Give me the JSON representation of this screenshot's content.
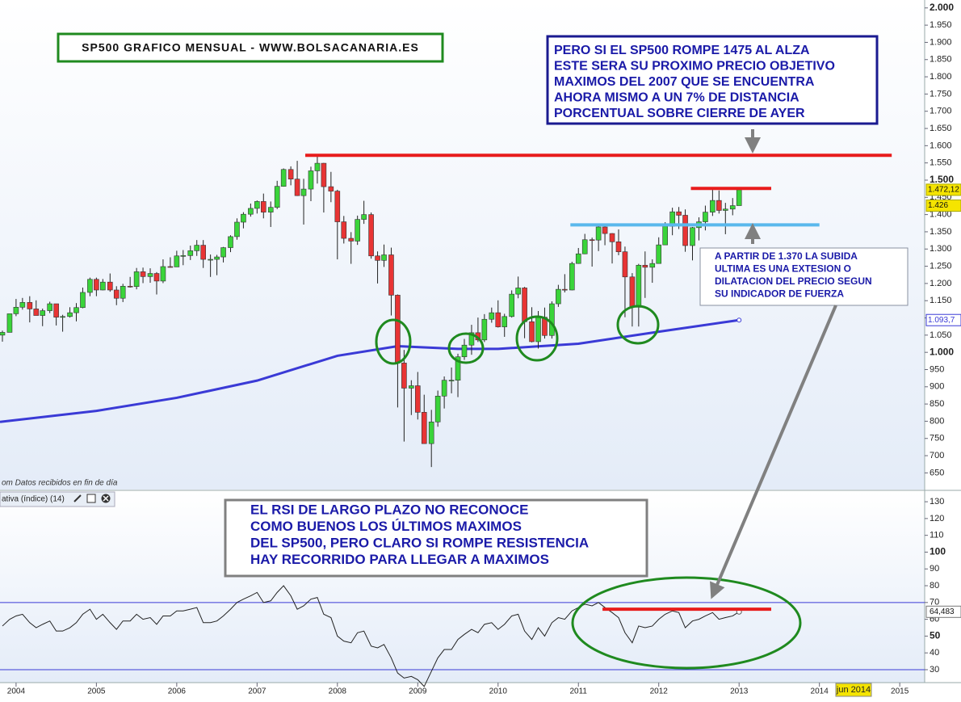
{
  "chart_data": {
    "type": "candlestick",
    "title": "SP500 GRAFICO MENSUAL - WWW.BOLSACANARIA.ES",
    "footnote": "om  Datos recibidos en fin de día",
    "x": [
      2003.83,
      2003.92,
      2004,
      2004.08,
      2004.17,
      2004.25,
      2004.33,
      2004.42,
      2004.5,
      2004.58,
      2004.67,
      2004.75,
      2004.83,
      2004.92,
      2005,
      2005.08,
      2005.17,
      2005.25,
      2005.33,
      2005.42,
      2005.5,
      2005.58,
      2005.67,
      2005.75,
      2005.83,
      2005.92,
      2006,
      2006.08,
      2006.17,
      2006.25,
      2006.33,
      2006.42,
      2006.5,
      2006.58,
      2006.67,
      2006.75,
      2006.83,
      2006.92,
      2007,
      2007.08,
      2007.17,
      2007.25,
      2007.33,
      2007.42,
      2007.5,
      2007.58,
      2007.67,
      2007.75,
      2007.83,
      2007.92,
      2008,
      2008.08,
      2008.17,
      2008.25,
      2008.33,
      2008.42,
      2008.5,
      2008.58,
      2008.67,
      2008.75,
      2008.83,
      2008.92,
      2009,
      2009.08,
      2009.17,
      2009.25,
      2009.33,
      2009.42,
      2009.5,
      2009.58,
      2009.67,
      2009.75,
      2009.83,
      2009.92,
      2010,
      2010.08,
      2010.17,
      2010.25,
      2010.33,
      2010.42,
      2010.5,
      2010.58,
      2010.67,
      2010.75,
      2010.83,
      2010.92,
      2011,
      2011.08,
      2011.17,
      2011.25,
      2011.33,
      2011.42,
      2011.5,
      2011.58,
      2011.67,
      2011.75,
      2011.83,
      2011.92,
      2012,
      2012.08,
      2012.17,
      2012.25,
      2012.33,
      2012.42,
      2012.5,
      2012.58,
      2012.67,
      2012.75,
      2012.83,
      2012.92,
      2013
    ],
    "open": [
      1050,
      1058,
      1112,
      1131,
      1145,
      1126,
      1107,
      1121,
      1141,
      1102,
      1104,
      1115,
      1130,
      1174,
      1212,
      1181,
      1204,
      1181,
      1157,
      1192,
      1191,
      1234,
      1220,
      1229,
      1207,
      1249,
      1248,
      1280,
      1281,
      1295,
      1311,
      1270,
      1270,
      1277,
      1304,
      1336,
      1378,
      1401,
      1418,
      1438,
      1407,
      1421,
      1482,
      1531,
      1503,
      1455,
      1474,
      1527,
      1549,
      1481,
      1468,
      1379,
      1331,
      1323,
      1386,
      1400,
      1280,
      1267,
      1283,
      1166,
      969,
      896,
      903,
      826,
      735,
      798,
      873,
      919,
      919,
      987,
      1021,
      1057,
      1036,
      1096,
      1115,
      1074,
      1104,
      1169,
      1187,
      1089,
      1031,
      1102,
      1049,
      1141,
      1183,
      1181,
      1258,
      1286,
      1327,
      1326,
      1364,
      1345,
      1321,
      1292,
      1219,
      1131,
      1253,
      1247,
      1258,
      1312,
      1366,
      1408,
      1398,
      1310,
      1362,
      1379,
      1407,
      1441,
      1412,
      1416,
      1426
    ],
    "high": [
      1063,
      1112,
      1155,
      1158,
      1163,
      1151,
      1127,
      1147,
      1141,
      1109,
      1131,
      1143,
      1188,
      1217,
      1217,
      1213,
      1229,
      1192,
      1199,
      1219,
      1245,
      1246,
      1244,
      1233,
      1270,
      1276,
      1295,
      1297,
      1310,
      1326,
      1326,
      1284,
      1283,
      1306,
      1340,
      1389,
      1407,
      1432,
      1441,
      1461,
      1438,
      1498,
      1534,
      1540,
      1556,
      1504,
      1539,
      1576,
      1550,
      1524,
      1472,
      1396,
      1349,
      1397,
      1440,
      1406,
      1293,
      1313,
      1304,
      1168,
      1007,
      919,
      943,
      877,
      833,
      889,
      930,
      956,
      996,
      1039,
      1080,
      1101,
      1111,
      1130,
      1151,
      1112,
      1180,
      1220,
      1190,
      1131,
      1120,
      1130,
      1148,
      1196,
      1227,
      1263,
      1303,
      1344,
      1333,
      1370,
      1371,
      1346,
      1357,
      1307,
      1230,
      1257,
      1293,
      1270,
      1334,
      1378,
      1420,
      1422,
      1415,
      1364,
      1392,
      1426,
      1475,
      1470,
      1434,
      1448,
      1475
    ],
    "low": [
      1031,
      1058,
      1105,
      1124,
      1087,
      1107,
      1076,
      1114,
      1078,
      1060,
      1101,
      1090,
      1128,
      1163,
      1163,
      1180,
      1176,
      1137,
      1146,
      1188,
      1183,
      1201,
      1202,
      1168,
      1201,
      1246,
      1248,
      1253,
      1268,
      1280,
      1245,
      1219,
      1224,
      1261,
      1291,
      1327,
      1360,
      1394,
      1403,
      1389,
      1364,
      1416,
      1481,
      1485,
      1454,
      1371,
      1439,
      1490,
      1406,
      1436,
      1270,
      1316,
      1257,
      1312,
      1373,
      1272,
      1200,
      1248,
      1107,
      840,
      741,
      818,
      805,
      735,
      667,
      784,
      837,
      881,
      870,
      978,
      993,
      1030,
      1030,
      1086,
      1072,
      1045,
      1101,
      1157,
      1041,
      1029,
      1011,
      1040,
      1040,
      1132,
      1174,
      1180,
      1257,
      1285,
      1249,
      1294,
      1311,
      1258,
      1282,
      1102,
      1075,
      1075,
      1158,
      1202,
      1258,
      1312,
      1340,
      1358,
      1292,
      1267,
      1325,
      1354,
      1396,
      1403,
      1343,
      1398,
      1426
    ],
    "close": [
      1058,
      1112,
      1131,
      1145,
      1126,
      1107,
      1121,
      1141,
      1102,
      1104,
      1115,
      1130,
      1174,
      1212,
      1181,
      1204,
      1181,
      1157,
      1192,
      1191,
      1234,
      1220,
      1229,
      1207,
      1249,
      1248,
      1280,
      1281,
      1295,
      1311,
      1270,
      1270,
      1277,
      1304,
      1336,
      1378,
      1401,
      1418,
      1438,
      1407,
      1421,
      1482,
      1531,
      1503,
      1455,
      1474,
      1527,
      1549,
      1481,
      1468,
      1379,
      1331,
      1323,
      1386,
      1400,
      1280,
      1267,
      1283,
      1166,
      969,
      896,
      903,
      826,
      735,
      798,
      873,
      919,
      919,
      987,
      1021,
      1057,
      1036,
      1096,
      1115,
      1074,
      1104,
      1169,
      1187,
      1089,
      1031,
      1102,
      1049,
      1141,
      1183,
      1181,
      1258,
      1286,
      1327,
      1326,
      1364,
      1345,
      1321,
      1292,
      1219,
      1131,
      1253,
      1247,
      1258,
      1312,
      1366,
      1408,
      1398,
      1310,
      1362,
      1379,
      1407,
      1441,
      1412,
      1416,
      1426,
      1472.12
    ],
    "up_color": "#3ad43a",
    "down_color": "#e83434",
    "ma": {
      "color": "#3a3ad6",
      "x": [
        2003.8,
        2005,
        2006,
        2007,
        2008,
        2008.75,
        2009.5,
        2010,
        2011,
        2012,
        2013
      ],
      "values": [
        798,
        830,
        868,
        918,
        990,
        1018,
        1010,
        1010,
        1025,
        1060,
        1093.7
      ]
    },
    "levels": [
      {
        "value": 1572,
        "color": "#e81c1c",
        "x": [
          2007.6,
          2014.9
        ]
      },
      {
        "value": 1476,
        "color": "#e81c1c",
        "x": [
          2012.4,
          2013.4
        ]
      },
      {
        "value": 1370,
        "color": "#5ab8ec",
        "x": [
          2010.9,
          2014.0
        ]
      }
    ],
    "last_labels": [
      {
        "value": 1472.12,
        "label": "1.472,12"
      },
      {
        "value": 1426,
        "label": "1.426"
      },
      {
        "value": 1093.7,
        "label": "1.093,7"
      }
    ],
    "xlim": [
      2003.8,
      2015.31
    ],
    "ylim": [
      604,
      2023
    ],
    "xticks": [
      2004,
      2005,
      2006,
      2007,
      2008,
      2009,
      2010,
      2011,
      2012,
      2013,
      2014,
      2015
    ],
    "cursor_label": "jun 2014",
    "yticks": [
      650,
      700,
      750,
      800,
      850,
      900,
      950,
      {
        "value": 1000,
        "label": "1.000"
      },
      {
        "value": 1050,
        "label": "1.050"
      },
      {
        "value": 1100,
        "label": "1.100"
      },
      {
        "value": 1150,
        "label": "1.150"
      },
      {
        "value": 1200,
        "label": "1.200"
      },
      {
        "value": 1250,
        "label": "1.250"
      },
      {
        "value": 1300,
        "label": "1.300"
      },
      {
        "value": 1350,
        "label": "1.350"
      },
      {
        "value": 1400,
        "label": "1.400"
      },
      {
        "value": 1450,
        "label": "1.450"
      },
      {
        "value": 1500,
        "label": "1.500"
      },
      {
        "value": 1550,
        "label": "1.550"
      },
      {
        "value": 1600,
        "label": "1.600"
      },
      {
        "value": 1650,
        "label": "1.650"
      },
      {
        "value": 1700,
        "label": "1.700"
      },
      {
        "value": 1750,
        "label": "1.750"
      },
      {
        "value": 1800,
        "label": "1.800"
      },
      {
        "value": 1850,
        "label": "1.850"
      },
      {
        "value": 1900,
        "label": "1.900"
      },
      {
        "value": 1950,
        "label": "1.950"
      },
      {
        "value": 2000,
        "label": "2.000"
      }
    ],
    "annotations": [
      [
        "PERO SI EL SP500 ROMPE 1475 AL ALZA",
        "ESTE SERA SU PROXIMO PRECIO OBJETIVO",
        "MAXIMOS DEL 2007 QUE SE ENCUENTRA",
        "AHORA MISMO A UN 7% DE DISTANCIA",
        "PORCENTUAL SOBRE CIERRE DE AYER"
      ],
      [
        "A PARTIR DE 1.370 LA SUBIDA",
        "ULTIMA ES UNA EXTESION O",
        "DILATACION DEL PRECIO SEGUN",
        "SU INDICADOR DE FUERZA"
      ],
      [
        "EL RSI DE LARGO PLAZO NO RECONOCE",
        "COMO BUENOS LOS ÚLTIMOS MAXIMOS",
        "DEL SP500, PERO CLARO SI ROMPE RESISTENCIA",
        "HAY RECORRIDO PARA LLEGAR A MAXIMOS"
      ]
    ],
    "rsi": {
      "title": "ativa (índice) (14)",
      "color": "#222222",
      "values": [
        56,
        60,
        62,
        63,
        58,
        55,
        57,
        59,
        53,
        53,
        55,
        58,
        63,
        66,
        60,
        63,
        58,
        54,
        59,
        59,
        63,
        60,
        61,
        57,
        62,
        62,
        65,
        65,
        66,
        67,
        58,
        58,
        59,
        62,
        66,
        70,
        72,
        74,
        76,
        70,
        71,
        76,
        80,
        74,
        66,
        68,
        72,
        73,
        63,
        61,
        50,
        47,
        46,
        52,
        53,
        44,
        43,
        45,
        37,
        28,
        25,
        26,
        24,
        20,
        29,
        37,
        42,
        42,
        48,
        51,
        54,
        52,
        57,
        58,
        54,
        57,
        62,
        63,
        53,
        48,
        55,
        50,
        58,
        61,
        60,
        65,
        67,
        69,
        68,
        70,
        67,
        64,
        61,
        52,
        46,
        56,
        55,
        56,
        60,
        63,
        65,
        64,
        55,
        59,
        60,
        62,
        64,
        60,
        61,
        62,
        64.483
      ],
      "last_label": {
        "value": 64.483,
        "label": "64,483"
      },
      "bands": [
        70,
        30
      ],
      "band_color": "#3a3ad6",
      "level": {
        "value": 66,
        "color": "#e81c1c",
        "x": [
          2011.3,
          2013.4
        ]
      },
      "ylim": [
        22.3,
        136.3
      ],
      "yticks": [
        30,
        40,
        50,
        60,
        70,
        80,
        90,
        100,
        110,
        120,
        130
      ]
    }
  }
}
